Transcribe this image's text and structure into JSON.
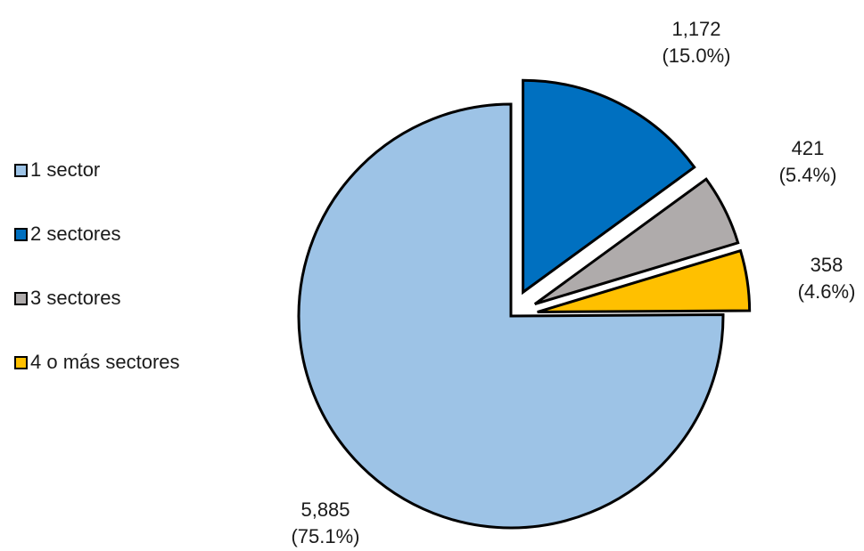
{
  "chart_data": {
    "type": "pie",
    "title": "",
    "start_angle_deg": 0,
    "direction": "clockwise",
    "legend_position": "left",
    "slices": [
      {
        "name": "1 sector",
        "value": 5885,
        "percent_label": "(75.1%)",
        "value_label": "5,885",
        "color": "#9dc3e6",
        "exploded": false
      },
      {
        "name": "2 sectores",
        "value": 1172,
        "percent_label": "(15.0%)",
        "value_label": "1,172",
        "color": "#0070c0",
        "exploded": true
      },
      {
        "name": "3 sectores",
        "value": 421,
        "percent_label": "(5.4%)",
        "value_label": "421",
        "color": "#afabab",
        "exploded": true
      },
      {
        "name": "4 o más sectores",
        "value": 358,
        "percent_label": "(4.6%)",
        "value_label": "358",
        "color": "#ffc000",
        "exploded": true
      }
    ]
  },
  "legend": {
    "items": [
      {
        "label": "1 sector",
        "color": "#9dc3e6"
      },
      {
        "label": "2 sectores",
        "color": "#0070c0"
      },
      {
        "label": "3 sectores",
        "color": "#afabab"
      },
      {
        "label": "4 o más sectores",
        "color": "#ffc000"
      }
    ]
  }
}
